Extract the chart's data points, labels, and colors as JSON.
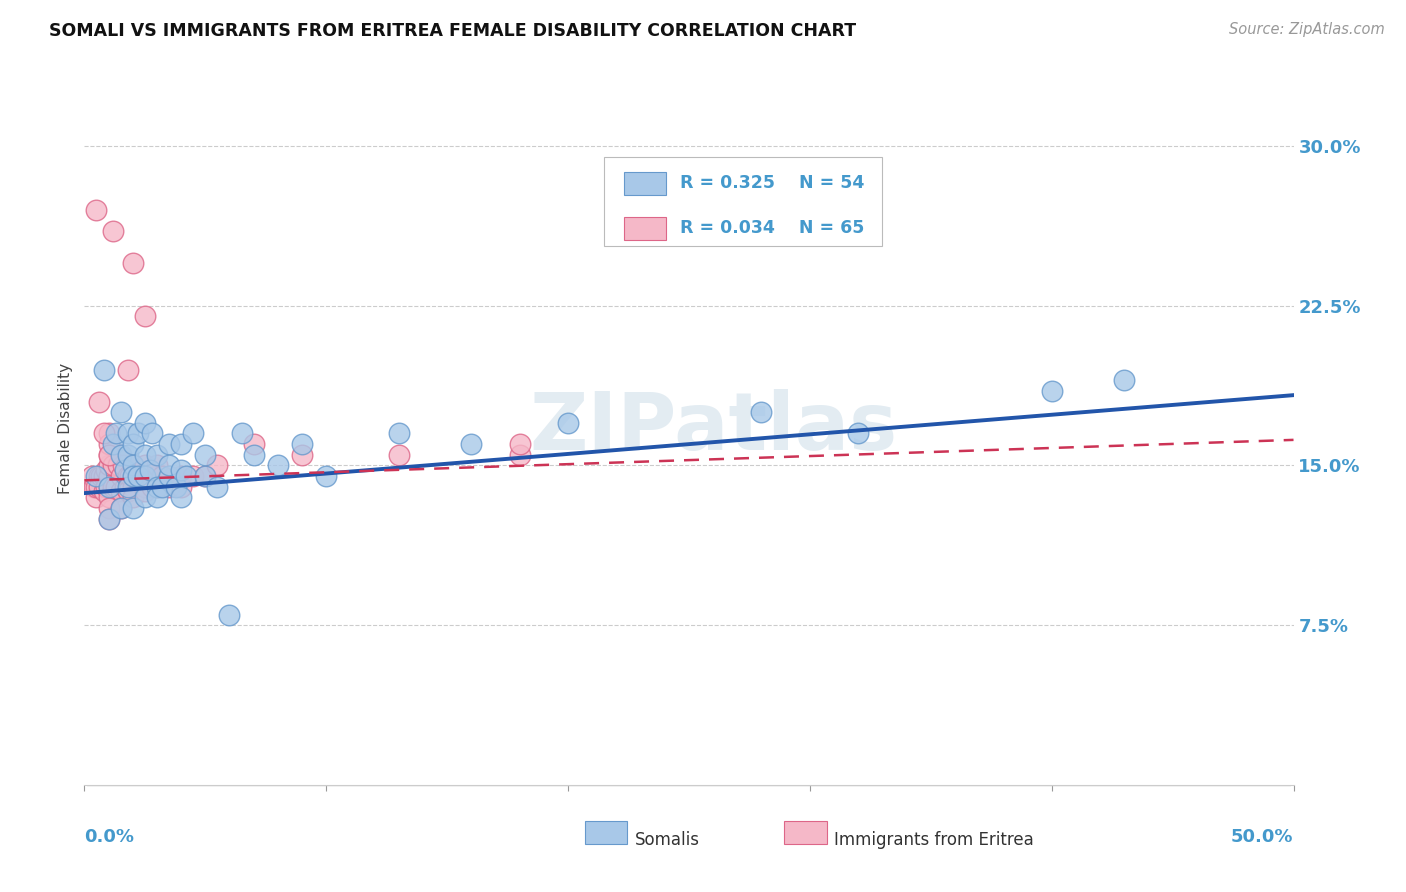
{
  "title": "SOMALI VS IMMIGRANTS FROM ERITREA FEMALE DISABILITY CORRELATION CHART",
  "source": "Source: ZipAtlas.com",
  "ylabel": "Female Disability",
  "ytick_labels": [
    "7.5%",
    "15.0%",
    "22.5%",
    "30.0%"
  ],
  "ytick_values": [
    0.075,
    0.15,
    0.225,
    0.3
  ],
  "xlim": [
    0.0,
    0.5
  ],
  "ylim": [
    0.0,
    0.335
  ],
  "grid_color": "#cccccc",
  "background_color": "#ffffff",
  "somali_color": "#a8c8e8",
  "somali_edge": "#6699cc",
  "eritrea_color": "#f5b8c8",
  "eritrea_edge": "#dd6688",
  "somali_line_color": "#2255aa",
  "eritrea_line_color": "#cc3355",
  "label_color": "#4499cc",
  "somali_x": [
    0.005,
    0.008,
    0.01,
    0.01,
    0.012,
    0.013,
    0.015,
    0.015,
    0.015,
    0.017,
    0.018,
    0.018,
    0.018,
    0.02,
    0.02,
    0.02,
    0.02,
    0.022,
    0.022,
    0.025,
    0.025,
    0.025,
    0.025,
    0.027,
    0.028,
    0.03,
    0.03,
    0.03,
    0.032,
    0.035,
    0.035,
    0.035,
    0.038,
    0.04,
    0.04,
    0.04,
    0.042,
    0.045,
    0.05,
    0.05,
    0.055,
    0.06,
    0.065,
    0.07,
    0.08,
    0.09,
    0.1,
    0.13,
    0.16,
    0.2,
    0.28,
    0.32,
    0.4,
    0.43
  ],
  "somali_y": [
    0.145,
    0.195,
    0.14,
    0.125,
    0.16,
    0.165,
    0.13,
    0.155,
    0.175,
    0.148,
    0.155,
    0.165,
    0.14,
    0.15,
    0.16,
    0.145,
    0.13,
    0.145,
    0.165,
    0.145,
    0.155,
    0.17,
    0.135,
    0.148,
    0.165,
    0.14,
    0.155,
    0.135,
    0.14,
    0.145,
    0.16,
    0.15,
    0.14,
    0.148,
    0.16,
    0.135,
    0.145,
    0.165,
    0.145,
    0.155,
    0.14,
    0.08,
    0.165,
    0.155,
    0.15,
    0.16,
    0.145,
    0.165,
    0.16,
    0.17,
    0.175,
    0.165,
    0.185,
    0.19
  ],
  "eritrea_x": [
    0.003,
    0.004,
    0.005,
    0.005,
    0.006,
    0.006,
    0.007,
    0.008,
    0.008,
    0.009,
    0.009,
    0.01,
    0.01,
    0.01,
    0.01,
    0.01,
    0.01,
    0.01,
    0.012,
    0.012,
    0.013,
    0.014,
    0.015,
    0.015,
    0.015,
    0.015,
    0.016,
    0.017,
    0.018,
    0.018,
    0.019,
    0.02,
    0.02,
    0.02,
    0.02,
    0.022,
    0.025,
    0.025,
    0.025,
    0.028,
    0.03,
    0.03,
    0.03,
    0.032,
    0.035,
    0.04,
    0.04,
    0.045,
    0.05,
    0.055,
    0.07,
    0.09,
    0.13,
    0.18,
    0.18,
    0.02,
    0.025,
    0.018,
    0.012,
    0.01,
    0.01,
    0.01,
    0.008,
    0.006,
    0.005
  ],
  "eritrea_y": [
    0.145,
    0.14,
    0.135,
    0.14,
    0.145,
    0.14,
    0.145,
    0.145,
    0.138,
    0.14,
    0.148,
    0.14,
    0.145,
    0.15,
    0.135,
    0.13,
    0.155,
    0.125,
    0.14,
    0.15,
    0.14,
    0.15,
    0.138,
    0.145,
    0.155,
    0.13,
    0.15,
    0.14,
    0.145,
    0.138,
    0.145,
    0.14,
    0.145,
    0.15,
    0.135,
    0.145,
    0.14,
    0.15,
    0.138,
    0.14,
    0.145,
    0.14,
    0.15,
    0.145,
    0.14,
    0.145,
    0.14,
    0.145,
    0.145,
    0.15,
    0.16,
    0.155,
    0.155,
    0.155,
    0.16,
    0.245,
    0.22,
    0.195,
    0.26,
    0.165,
    0.16,
    0.155,
    0.165,
    0.18,
    0.27
  ],
  "somali_line_x0": 0.0,
  "somali_line_y0": 0.137,
  "somali_line_x1": 0.5,
  "somali_line_y1": 0.183,
  "eritrea_line_x0": 0.0,
  "eritrea_line_y0": 0.143,
  "eritrea_line_x1": 0.5,
  "eritrea_line_y1": 0.162
}
